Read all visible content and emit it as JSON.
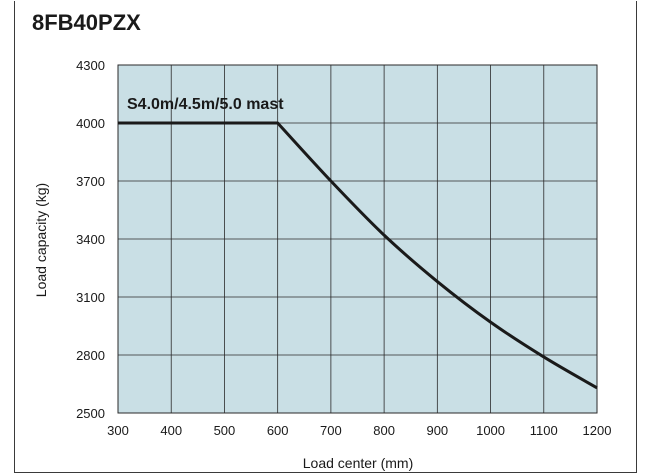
{
  "chart_data": {
    "type": "line",
    "title": "8FB40PZX",
    "xlabel": "Load center (mm)",
    "ylabel": "Load capacity (kg)",
    "xlim": [
      300,
      1200
    ],
    "ylim": [
      2500,
      4300
    ],
    "x_ticks": [
      "300",
      "400",
      "500",
      "600",
      "700",
      "800",
      "900",
      "1000",
      "1100",
      "1200"
    ],
    "y_ticks": [
      "2500",
      "2800",
      "3100",
      "3400",
      "3700",
      "4000",
      "4300"
    ],
    "grid": true,
    "legend": "none",
    "annotation": "S4.0m/4.5m/5.0 mast",
    "colors": {
      "plot_background": "#c9dfe5",
      "grid": "#2a2a2a",
      "line": "#1a1a1a"
    },
    "series": [
      {
        "x": [
          300,
          400,
          500,
          600,
          700,
          800,
          900,
          1000,
          1100,
          1200
        ],
        "y": [
          4000,
          4000,
          4000,
          4000,
          3700,
          3420,
          3180,
          2970,
          2790,
          2630
        ]
      }
    ]
  }
}
